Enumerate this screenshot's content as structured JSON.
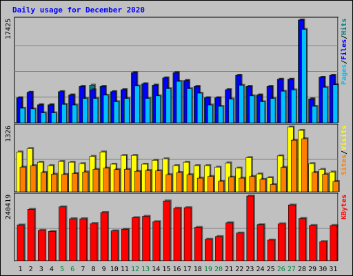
{
  "title": "Daily usage for December 2020",
  "colors": {
    "background": "#c0c0c0",
    "title": "#0000ff",
    "hits": "#008080",
    "files": "#0000ff",
    "pages": "#00c0ff",
    "visits": "#ffff00",
    "sites": "#ff8000",
    "kbytes": "#ff0000",
    "weekend_label": "#008040"
  },
  "legend": {
    "pages": "Pages",
    "files": "Files",
    "hits": "Hits",
    "visits": "Visits",
    "sites": "Sites",
    "kbytes": "KBytes",
    "separator": "/"
  },
  "chart_data": [
    {
      "type": "bar",
      "title": "Daily usage for December 2020",
      "categories": [
        "1",
        "2",
        "3",
        "4",
        "5",
        "6",
        "7",
        "8",
        "9",
        "10",
        "11",
        "12",
        "13",
        "14",
        "15",
        "16",
        "17",
        "18",
        "19",
        "20",
        "21",
        "22",
        "23",
        "24",
        "25",
        "26",
        "27",
        "28",
        "29",
        "30",
        "31"
      ],
      "weekend_days": [
        "5",
        "6",
        "12",
        "13",
        "19",
        "20",
        "26",
        "27"
      ],
      "ymax_label": "17425",
      "ylim": [
        0,
        17425
      ],
      "series": [
        {
          "name": "Hits",
          "values": [
            4237,
            5164,
            3053,
            3053,
            5276,
            4719,
            6163,
            6386,
            6163,
            5276,
            5610,
            8493,
            6608,
            6386,
            7608,
            8493,
            7164,
            6163,
            4237,
            4237,
            5610,
            8049,
            6163,
            4719,
            6163,
            7385,
            7385,
            17425,
            4055,
            7719,
            8049
          ]
        },
        {
          "name": "Files",
          "values": [
            4237,
            5164,
            3053,
            3053,
            5276,
            4719,
            6163,
            5610,
            6163,
            5276,
            5610,
            8493,
            6608,
            6386,
            7608,
            8493,
            7164,
            6163,
            4237,
            4237,
            5610,
            8049,
            6163,
            4719,
            6163,
            7385,
            7385,
            17425,
            4055,
            7719,
            8049
          ]
        },
        {
          "name": "Pages",
          "values": [
            3053,
            2941,
            2274,
            2274,
            3719,
            3609,
            4719,
            4719,
            5276,
            4164,
            4719,
            6831,
            4719,
            5164,
            6386,
            7608,
            6386,
            5610,
            3609,
            3386,
            4609,
            6942,
            5164,
            4164,
            4719,
            5940,
            6163,
            16419,
            3386,
            6608,
            7051
          ]
        }
      ]
    },
    {
      "type": "bar",
      "categories": [
        "1",
        "2",
        "3",
        "4",
        "5",
        "6",
        "7",
        "8",
        "9",
        "10",
        "11",
        "12",
        "13",
        "14",
        "15",
        "16",
        "17",
        "18",
        "19",
        "20",
        "21",
        "22",
        "23",
        "24",
        "25",
        "26",
        "27",
        "28",
        "29",
        "30",
        "31"
      ],
      "ymax_label": "1326",
      "ylim": [
        0,
        1326
      ],
      "series": [
        {
          "name": "Visits",
          "values": [
            815,
            885,
            605,
            535,
            620,
            605,
            575,
            725,
            815,
            565,
            745,
            745,
            565,
            645,
            675,
            535,
            605,
            535,
            535,
            505,
            590,
            485,
            700,
            365,
            290,
            735,
            1326,
            1256,
            575,
            460,
            405
          ]
        },
        {
          "name": "Sites",
          "values": [
            505,
            535,
            395,
            360,
            355,
            375,
            405,
            460,
            485,
            455,
            460,
            420,
            435,
            430,
            350,
            395,
            350,
            280,
            315,
            215,
            300,
            280,
            315,
            255,
            150,
            500,
            1055,
            1085,
            395,
            360,
            210
          ]
        }
      ]
    },
    {
      "type": "bar",
      "categories": [
        "1",
        "2",
        "3",
        "4",
        "5",
        "6",
        "7",
        "8",
        "9",
        "10",
        "11",
        "12",
        "13",
        "14",
        "15",
        "16",
        "17",
        "18",
        "19",
        "20",
        "21",
        "22",
        "23",
        "24",
        "25",
        "26",
        "27",
        "28",
        "29",
        "30",
        "31"
      ],
      "ymax_label": "240419",
      "ylim": [
        0,
        240419
      ],
      "series": [
        {
          "name": "KBytes",
          "values": [
            133000,
            191000,
            113000,
            109000,
            200000,
            156000,
            156000,
            138000,
            179000,
            111000,
            117000,
            160000,
            165000,
            145000,
            222000,
            195000,
            197000,
            124000,
            80000,
            90000,
            141000,
            103000,
            240419,
            134000,
            77000,
            137000,
            207000,
            157000,
            131000,
            71000,
            131000
          ]
        }
      ]
    }
  ]
}
